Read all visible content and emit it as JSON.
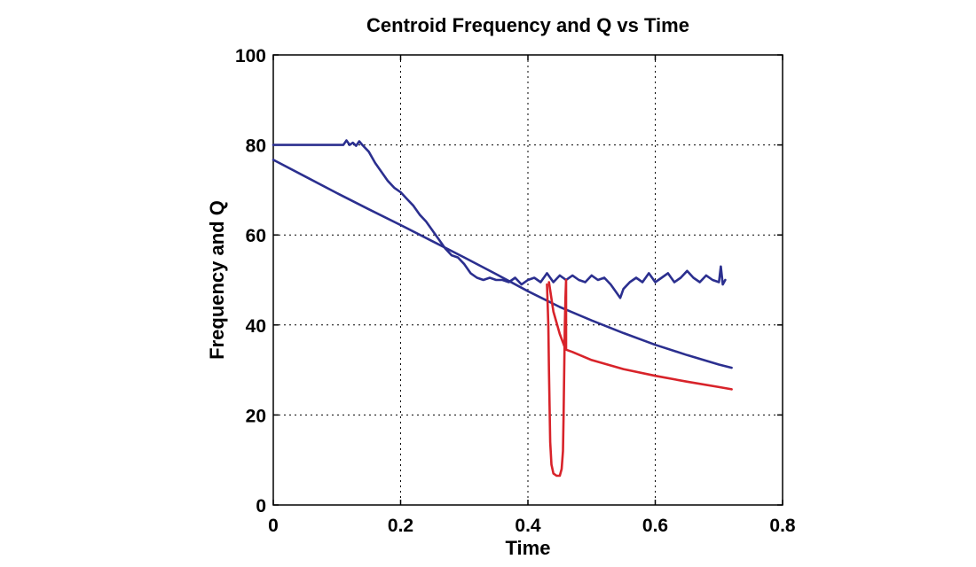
{
  "chart_data": {
    "type": "line",
    "title": "Centroid Frequency and Q vs Time",
    "xlabel": "Time",
    "ylabel": "Frequency and Q",
    "xlim": [
      0,
      0.8
    ],
    "ylim": [
      0,
      100
    ],
    "xticks": [
      0,
      0.2,
      0.4,
      0.6,
      0.8
    ],
    "xtick_labels": [
      "0",
      "0.2",
      "0.4",
      "0.6",
      "0.8"
    ],
    "yticks": [
      0,
      20,
      40,
      60,
      80,
      100
    ],
    "ytick_labels": [
      "0",
      "20",
      "40",
      "60",
      "80",
      "100"
    ],
    "grid": true,
    "legend": "none",
    "colors": {
      "blue": "#2b2f8f",
      "red": "#d8232a",
      "grid": "#000000"
    },
    "series": [
      {
        "color": "#2b2f8f",
        "x": [
          0,
          0.05,
          0.1,
          0.15,
          0.2,
          0.25,
          0.3,
          0.35,
          0.4,
          0.45,
          0.5,
          0.55,
          0.6,
          0.65,
          0.7,
          0.72
        ],
        "y": [
          76.7,
          73.0,
          69.3,
          65.7,
          62.2,
          58.6,
          55.0,
          51.3,
          47.5,
          44.0,
          41.0,
          38.2,
          35.6,
          33.3,
          31.2,
          30.5
        ]
      },
      {
        "color": "#2b2f8f",
        "x": [
          0,
          0.11,
          0.115,
          0.12,
          0.125,
          0.13,
          0.135,
          0.14,
          0.15,
          0.16,
          0.17,
          0.18,
          0.19,
          0.2,
          0.21,
          0.22,
          0.23,
          0.24,
          0.25,
          0.26,
          0.27,
          0.28,
          0.29,
          0.3,
          0.31,
          0.32,
          0.33,
          0.34,
          0.35,
          0.36,
          0.37,
          0.38,
          0.39,
          0.4,
          0.41,
          0.42,
          0.43,
          0.44,
          0.45,
          0.46,
          0.47,
          0.48,
          0.49,
          0.5,
          0.51,
          0.52,
          0.53,
          0.54,
          0.545,
          0.55,
          0.56,
          0.57,
          0.58,
          0.59,
          0.6,
          0.61,
          0.62,
          0.63,
          0.64,
          0.65,
          0.66,
          0.67,
          0.68,
          0.69,
          0.7,
          0.703,
          0.706,
          0.71
        ],
        "y": [
          80.0,
          80.0,
          81.0,
          80.0,
          80.5,
          79.8,
          80.8,
          80.0,
          78.5,
          76.0,
          74.0,
          72.0,
          70.5,
          69.5,
          68.0,
          66.5,
          64.5,
          63.0,
          61.0,
          59.0,
          57.0,
          55.5,
          55.0,
          53.5,
          51.5,
          50.5,
          50.0,
          50.5,
          50.0,
          50.0,
          49.5,
          50.5,
          49.0,
          50.0,
          50.5,
          49.5,
          51.5,
          49.5,
          51.0,
          50.0,
          51.0,
          50.0,
          49.5,
          51.0,
          50.0,
          50.5,
          49.0,
          47.0,
          46.0,
          48.0,
          49.5,
          50.5,
          49.5,
          51.5,
          49.5,
          50.5,
          51.5,
          49.5,
          50.5,
          52.0,
          50.5,
          49.5,
          51.0,
          50.0,
          49.5,
          53.0,
          49.0,
          50.0
        ]
      },
      {
        "color": "#d8232a",
        "x": [
          0.43,
          0.432,
          0.433,
          0.434,
          0.435,
          0.437,
          0.44,
          0.445,
          0.45,
          0.453,
          0.455,
          0.456,
          0.457,
          0.458,
          0.459,
          0.46,
          0.46,
          0.46,
          0.46,
          0.47,
          0.5,
          0.55,
          0.6,
          0.65,
          0.7,
          0.72
        ],
        "y": [
          49.0,
          40.0,
          30.0,
          22.0,
          14.0,
          9.0,
          7.0,
          6.5,
          6.5,
          8.0,
          12.0,
          20.0,
          30.0,
          40.0,
          46.0,
          50.0,
          50.0,
          40.0,
          34.5,
          34.0,
          32.2,
          30.2,
          28.7,
          27.4,
          26.2,
          25.7
        ]
      },
      {
        "color": "#d8232a",
        "x": [
          0.433,
          0.44,
          0.45,
          0.458
        ],
        "y": [
          49.5,
          43.0,
          38.0,
          35.0
        ]
      }
    ]
  }
}
